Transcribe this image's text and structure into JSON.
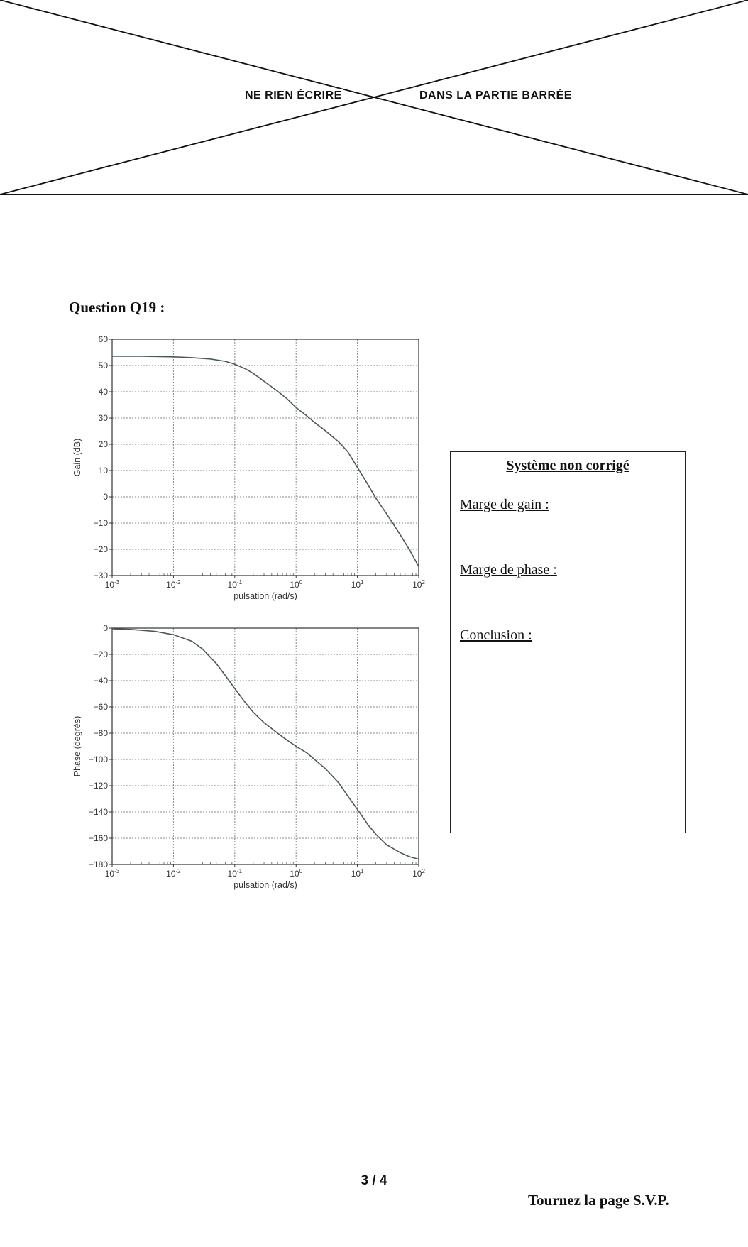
{
  "banner": {
    "left_text": "NE  RIEN  ÉCRIRE",
    "right_text": "DANS  LA  PARTIE  BARRÉE"
  },
  "question": {
    "title": "Question Q19 :"
  },
  "chart_data": [
    {
      "type": "line",
      "xscale": "log",
      "xlim": [
        0.001,
        100
      ],
      "ylim": [
        -30,
        60
      ],
      "xlabel": "pulsation (rad/s)",
      "ylabel": "Gain (dB)",
      "x_ticks": [
        "10^-3",
        "10^-2",
        "10^-1",
        "10^0",
        "10^1",
        "10^2"
      ],
      "y_ticks": [
        "60",
        "50",
        "40",
        "30",
        "20",
        "10",
        "0",
        "−10",
        "−20",
        "−30"
      ],
      "grid": true,
      "x": [
        0.001,
        0.003,
        0.01,
        0.02,
        0.04,
        0.07,
        0.1,
        0.15,
        0.2,
        0.3,
        0.5,
        0.7,
        1,
        1.5,
        2,
        3,
        5,
        7,
        10,
        15,
        20,
        30,
        50,
        70,
        100
      ],
      "y": [
        53.5,
        53.5,
        53.3,
        53.0,
        52.5,
        51.6,
        50.5,
        48.7,
        47.0,
        44.0,
        40.2,
        37.5,
        34.0,
        30.8,
        28.3,
        25.2,
        20.8,
        17.1,
        11.2,
        4.5,
        -0.5,
        -6.5,
        -14.5,
        -20.0,
        -26.5
      ]
    },
    {
      "type": "line",
      "xscale": "log",
      "xlim": [
        0.001,
        100
      ],
      "ylim": [
        -180,
        0
      ],
      "xlabel": "pulsation (rad/s)",
      "ylabel": "Phase (degrés)",
      "x_ticks": [
        "10^-3",
        "10^-2",
        "10^-1",
        "10^0",
        "10^1",
        "10^2"
      ],
      "y_ticks": [
        "0",
        "−20",
        "−40",
        "−60",
        "−80",
        "−100",
        "−120",
        "−140",
        "−160",
        "−180"
      ],
      "grid": true,
      "x": [
        0.001,
        0.002,
        0.005,
        0.01,
        0.02,
        0.03,
        0.05,
        0.07,
        0.1,
        0.15,
        0.2,
        0.3,
        0.5,
        0.7,
        1,
        1.5,
        2,
        3,
        5,
        7,
        10,
        15,
        20,
        30,
        50,
        70,
        100
      ],
      "y": [
        -0.5,
        -1,
        -2.5,
        -5,
        -10,
        -16,
        -27,
        -36,
        -46,
        -57,
        -64,
        -72,
        -80,
        -85,
        -90,
        -95,
        -100,
        -107,
        -118,
        -128,
        -138,
        -150,
        -157,
        -165,
        -171,
        -174,
        -176
      ]
    }
  ],
  "answer_box": {
    "title": "Système non corrigé",
    "gain_label": "Marge de gain :",
    "phase_label": "Marge de phase :",
    "conclusion_label": "Conclusion :"
  },
  "footer": {
    "page": "3 / 4",
    "turn": "Tournez la page S.V.P."
  }
}
